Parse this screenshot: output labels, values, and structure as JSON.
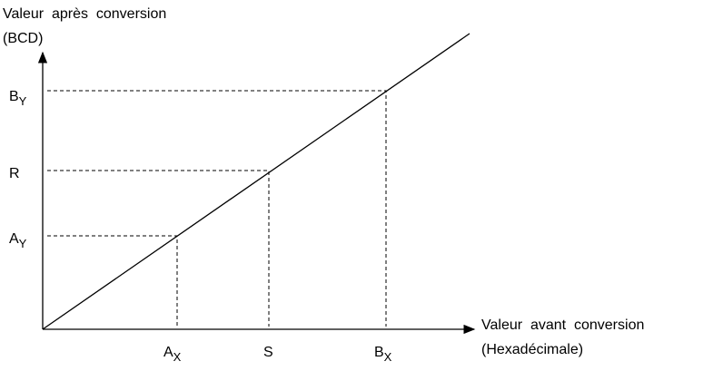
{
  "y_axis": {
    "title": [
      "Valeur  après  conversion",
      "(BCD)"
    ]
  },
  "x_axis": {
    "title": [
      "Valeur  avant  conversion",
      "(Hexadécimale)"
    ]
  },
  "points": [
    {
      "x_label": {
        "main": "A",
        "sub": "X"
      },
      "y_label": {
        "main": "A",
        "sub": "Y"
      }
    },
    {
      "x_label": {
        "main": "S"
      },
      "y_label": {
        "main": "R"
      }
    },
    {
      "x_label": {
        "main": "B",
        "sub": "X"
      },
      "y_label": {
        "main": "B",
        "sub": "Y"
      }
    }
  ]
}
